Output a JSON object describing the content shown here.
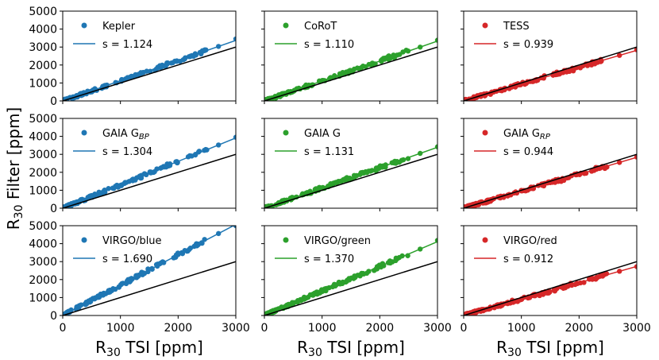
{
  "figure": {
    "xlabel": "R30 TSI [ppm]",
    "xlabel_main": "R",
    "xlabel_sub": "30",
    "xlabel_rest": " TSI [ppm]",
    "ylabel": "R30 Filter [ppm]",
    "ylabel_main": "R",
    "ylabel_sub": "30",
    "ylabel_rest": " Filter [ppm]"
  },
  "chart_data": {
    "type": "scatter",
    "grid": false,
    "xlim": [
      0,
      3000
    ],
    "ylim": [
      0,
      5000
    ],
    "xticks": [
      "0",
      "1000",
      "2000",
      "3000"
    ],
    "yticks": [
      "0",
      "1000",
      "2000",
      "3000",
      "4000",
      "5000"
    ],
    "reference_line": {
      "slope": 1.0,
      "color": "#000000"
    },
    "colors": {
      "blue": "#1f77b4",
      "green": "#2ca02c",
      "red": "#d62728"
    },
    "panels": [
      {
        "name": "Kepler",
        "sub": "",
        "slope_label": "s = 1.124",
        "slope": 1.124,
        "color": "#1f77b4",
        "max_point": [
          3000,
          3450
        ]
      },
      {
        "name": "CoRoT",
        "sub": "",
        "slope_label": "s = 1.110",
        "slope": 1.11,
        "color": "#2ca02c",
        "max_point": [
          3000,
          3380
        ]
      },
      {
        "name": "TESS",
        "sub": "",
        "slope_label": "s = 0.939",
        "slope": 0.939,
        "color": "#d62728",
        "max_point": [
          3000,
          2850
        ]
      },
      {
        "name": "GAIA G",
        "sub": "BP",
        "slope_label": "s = 1.304",
        "slope": 1.304,
        "color": "#1f77b4",
        "max_point": [
          3000,
          3950
        ]
      },
      {
        "name": "GAIA G",
        "sub": "",
        "slope_label": "s = 1.131",
        "slope": 1.131,
        "color": "#2ca02c",
        "max_point": [
          3000,
          3420
        ]
      },
      {
        "name": "GAIA G",
        "sub": "RP",
        "slope_label": "s = 0.944",
        "slope": 0.944,
        "color": "#d62728",
        "max_point": [
          3000,
          2850
        ]
      },
      {
        "name": "VIRGO/blue",
        "sub": "",
        "slope_label": "s = 1.690",
        "slope": 1.69,
        "color": "#1f77b4",
        "max_point": [
          3000,
          5000
        ]
      },
      {
        "name": "VIRGO/green",
        "sub": "",
        "slope_label": "s = 1.370",
        "slope": 1.37,
        "color": "#2ca02c",
        "max_point": [
          3000,
          4180
        ]
      },
      {
        "name": "VIRGO/red",
        "sub": "",
        "slope_label": "s = 0.912",
        "slope": 0.912,
        "color": "#d62728",
        "max_point": [
          3000,
          2720
        ]
      }
    ]
  }
}
